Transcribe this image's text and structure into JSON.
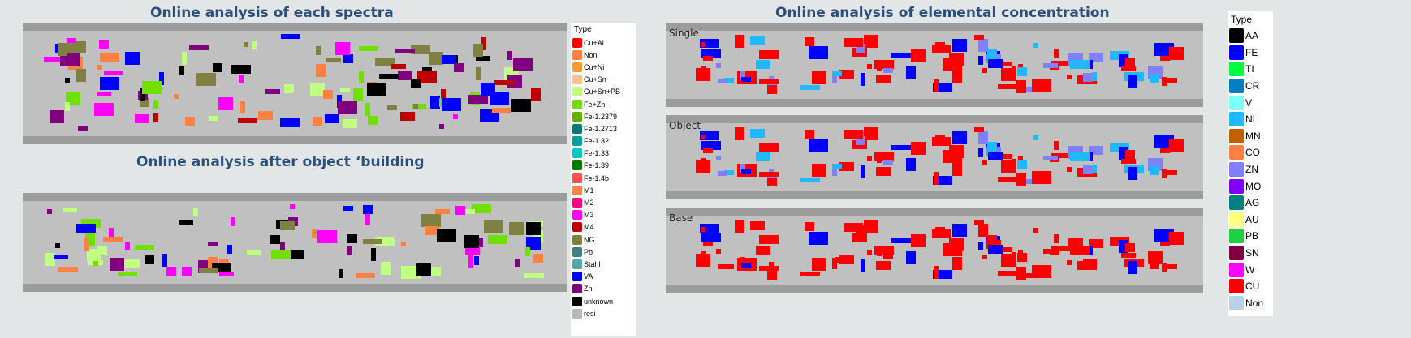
{
  "titles": {
    "spectra": "Online analysis of each spectra",
    "object": "Online analysis after object ‘building",
    "elemental": "Online analysis of elemental concentration"
  },
  "right_panels": [
    "Single",
    "Object",
    "Base"
  ],
  "legend_left": {
    "title": "Type",
    "items": [
      {
        "label": "Cu+Al",
        "color": "#ff0000"
      },
      {
        "label": "Non",
        "color": "#ff7f3f"
      },
      {
        "label": "Cu+Ni",
        "color": "#ff9933"
      },
      {
        "label": "Cu+Sn",
        "color": "#ffc090"
      },
      {
        "label": "Cu+Sn+PB",
        "color": "#c0ff80"
      },
      {
        "label": "Fe+Zn",
        "color": "#70e000"
      },
      {
        "label": "Fe-1.2379",
        "color": "#60b000"
      },
      {
        "label": "Fe-1.2713",
        "color": "#007a7a"
      },
      {
        "label": "Fe-1.32",
        "color": "#00a0a0"
      },
      {
        "label": "Fe-1.33",
        "color": "#00c8c8"
      },
      {
        "label": "Fe-1.39",
        "color": "#007a00"
      },
      {
        "label": "Fe-1.4b",
        "color": "#ff5050"
      },
      {
        "label": "M1",
        "color": "#ff8040"
      },
      {
        "label": "M2",
        "color": "#ff0080"
      },
      {
        "label": "M3",
        "color": "#ff00ff"
      },
      {
        "label": "M4",
        "color": "#c00000"
      },
      {
        "label": "NG",
        "color": "#808040"
      },
      {
        "label": "Pb",
        "color": "#408080"
      },
      {
        "label": "Stahl",
        "color": "#50a8a8"
      },
      {
        "label": "VA",
        "color": "#0000ff"
      },
      {
        "label": "Zn",
        "color": "#800080"
      },
      {
        "label": "unknown",
        "color": "#000000"
      },
      {
        "label": "resi",
        "color": "#b8b8b8"
      }
    ]
  },
  "legend_right": {
    "title": "Type",
    "items": [
      {
        "label": "AA",
        "color": "#000000"
      },
      {
        "label": "FE",
        "color": "#0000ff"
      },
      {
        "label": "TI",
        "color": "#00ff40"
      },
      {
        "label": "CR",
        "color": "#0080c0"
      },
      {
        "label": "V",
        "color": "#80ffff"
      },
      {
        "label": "NI",
        "color": "#20b8ff"
      },
      {
        "label": "MN",
        "color": "#c06000"
      },
      {
        "label": "CO",
        "color": "#ff8040"
      },
      {
        "label": "ZN",
        "color": "#8080ff"
      },
      {
        "label": "MO",
        "color": "#8000ff"
      },
      {
        "label": "AG",
        "color": "#008080"
      },
      {
        "label": "AU",
        "color": "#ffff80"
      },
      {
        "label": "PB",
        "color": "#20d040"
      },
      {
        "label": "SN",
        "color": "#800040"
      },
      {
        "label": "W",
        "color": "#ff00ff"
      },
      {
        "label": "CU",
        "color": "#ff0000"
      },
      {
        "label": "Non",
        "color": "#b8d0e8"
      }
    ]
  }
}
